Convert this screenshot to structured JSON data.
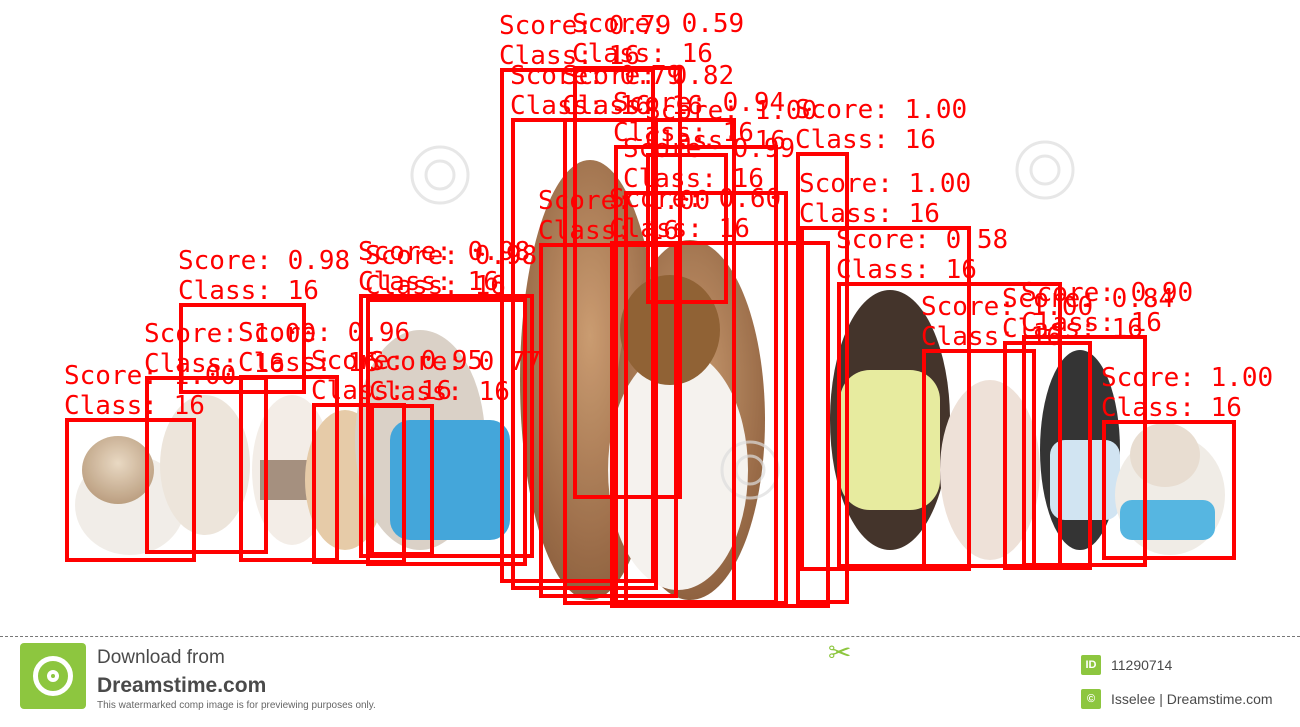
{
  "detections": [
    {
      "score": "Score: 1.00",
      "class": "Class: 16"
    },
    {
      "score": "Score: 1.00",
      "class": "Class: 16"
    },
    {
      "score": "Score: 0.98",
      "class": "Class: 16"
    },
    {
      "score": "Score: 0.96",
      "class": "Class: 16"
    },
    {
      "score": "Score: 0.95",
      "class": "Class: 16"
    },
    {
      "score": "Score: 0.98",
      "class": "Class: 16"
    },
    {
      "score": "Score: 0.77",
      "class": "Class: 16"
    },
    {
      "score": "Score: 0.98",
      "class": "Class: 16"
    },
    {
      "score": "Score: 0.79",
      "class": "Class: 16"
    },
    {
      "score": "Score: 0.79",
      "class": "Class: 16"
    },
    {
      "score": "Score: 0.59",
      "class": "Class: 16"
    },
    {
      "score": "Score: 1.00",
      "class": "Class: 16"
    },
    {
      "score": "Score: 0.82",
      "class": "Class: 16"
    },
    {
      "score": "Score: 0.94",
      "class": "Class: 16"
    },
    {
      "score": "Score: 0.99",
      "class": "Class: 16"
    },
    {
      "score": "Score: 1.00",
      "class": "Class: 16"
    },
    {
      "score": "Score: 0.60",
      "class": "Class: 16"
    },
    {
      "score": "Score: 1.00",
      "class": "Class: 16"
    },
    {
      "score": "Score: 1.00",
      "class": "Class: 16"
    },
    {
      "score": "Score: 0.58",
      "class": "Class: 16"
    },
    {
      "score": "Score: 1.00",
      "class": "Class: 16"
    },
    {
      "score": "Score: 0.84",
      "class": "Class: 16"
    },
    {
      "score": "Score: 0.90",
      "class": "Class: 16"
    },
    {
      "score": "Score: 1.00",
      "class": "Class: 16"
    }
  ],
  "footer": {
    "download_line": "Download from",
    "site": "Dreamstime.com",
    "notice": "This watermarked comp image is for previewing purposes only.",
    "id_badge": "ID",
    "image_id": "11290714",
    "copyright_badge": "©",
    "credit": "Isselee | Dreamstime.com"
  },
  "colors": {
    "box": "#ff0000",
    "accent": "#8dc63f"
  },
  "icons": [
    "dreamstime-logo-icon",
    "scissors-icon"
  ]
}
